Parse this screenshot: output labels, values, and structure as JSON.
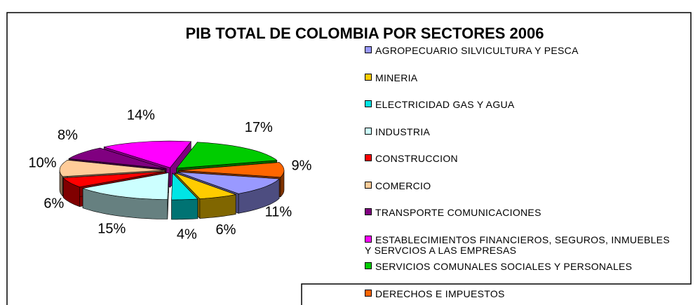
{
  "chart_data": {
    "type": "pie",
    "title": "PIB TOTAL DE COLOMBIA POR SECTORES 2006",
    "categories": [
      "AGROPECUARIO SILVICULTURA Y PESCA",
      "MINERIA",
      "ELECTRICIDAD GAS Y AGUA",
      "INDUSTRIA",
      "CONSTRUCCION",
      "COMERCIO",
      "TRANSPORTE COMUNICACIONES",
      "ESTABLECIMIENTOS FINANCIEROS, SEGUROS, INMUEBLES Y SERVCIOS A LAS EMPRESAS",
      "SERVICIOS COMUNALES  SOCIALES Y PERSONALES",
      "DERECHOS E IMPUESTOS"
    ],
    "values": [
      11,
      6,
      4,
      15,
      6,
      10,
      8,
      14,
      17,
      9
    ],
    "value_labels": [
      "11%",
      "6%",
      "4%",
      "15%",
      "6%",
      "10%",
      "8%",
      "14%",
      "17%",
      "9%"
    ],
    "colors": [
      "#9999ff",
      "#ffcc00",
      "#00e5e5",
      "#ccffff",
      "#ff0000",
      "#ffcc99",
      "#800080",
      "#ff00ff",
      "#00cc00",
      "#ff6600"
    ],
    "legend": "right"
  }
}
